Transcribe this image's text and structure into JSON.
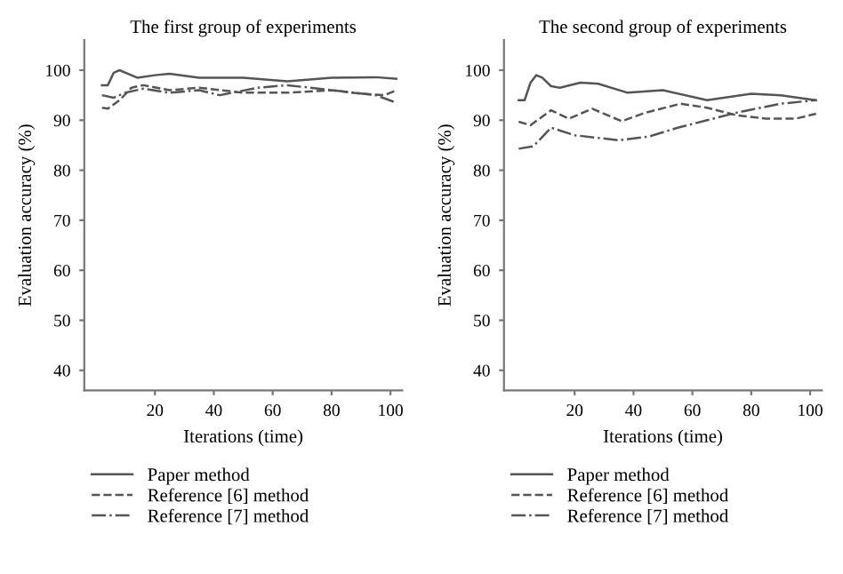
{
  "chart_data": [
    {
      "type": "line",
      "title": "The first group of experiments",
      "xlabel": "Iterations (time)",
      "ylabel": "Evaluation accuracy (%)",
      "xlim": [
        -4,
        104
      ],
      "ylim": [
        36,
        106
      ],
      "xticks": [
        20,
        40,
        60,
        80,
        100
      ],
      "yticks": [
        40,
        50,
        60,
        70,
        80,
        90,
        100
      ],
      "grid": false,
      "legend": "bottom",
      "series": [
        {
          "name": "Paper method",
          "color": "#555555",
          "line_style": "solid",
          "x": [
            2,
            4,
            6,
            8,
            10,
            14,
            20,
            25,
            35,
            50,
            65,
            80,
            95,
            102
          ],
          "values": [
            97,
            97,
            99.5,
            100,
            99.5,
            98.5,
            99,
            99.3,
            98.5,
            98.5,
            97.8,
            98.5,
            98.6,
            98.3
          ]
        },
        {
          "name": "Reference [6] method",
          "color": "#555555",
          "line_style": "dashed",
          "x": [
            2,
            4,
            8,
            12,
            16,
            25,
            35,
            50,
            65,
            80,
            90,
            98,
            102
          ],
          "values": [
            92.5,
            92.3,
            94,
            96.5,
            97,
            96,
            96.5,
            95.5,
            95.5,
            96,
            95.3,
            95,
            96
          ]
        },
        {
          "name": "Reference [7] method",
          "color": "#555555",
          "line_style": "dashdot",
          "x": [
            2,
            6,
            10,
            16,
            25,
            35,
            42,
            55,
            65,
            80,
            95,
            102
          ],
          "values": [
            95,
            94.5,
            95.5,
            96.3,
            95.5,
            96,
            95,
            96.5,
            97,
            96,
            95,
            93.5
          ]
        }
      ]
    },
    {
      "type": "line",
      "title": "The second group of experiments",
      "xlabel": "Iterations (time)",
      "ylabel": "Evaluation accuracy (%)",
      "xlim": [
        -4,
        104
      ],
      "ylim": [
        36,
        106
      ],
      "xticks": [
        20,
        40,
        60,
        80,
        100
      ],
      "yticks": [
        40,
        50,
        60,
        70,
        80,
        90,
        100
      ],
      "grid": false,
      "legend": "bottom",
      "series": [
        {
          "name": "Paper method",
          "color": "#555555",
          "line_style": "solid",
          "x": [
            1,
            3,
            5,
            7,
            9,
            12,
            15,
            22,
            28,
            38,
            50,
            65,
            80,
            90,
            102
          ],
          "values": [
            94,
            94,
            97.5,
            99,
            98.5,
            96.8,
            96.5,
            97.5,
            97.3,
            95.5,
            96,
            94,
            95.3,
            95,
            94
          ]
        },
        {
          "name": "Reference [6] method",
          "color": "#555555",
          "line_style": "dashed",
          "x": [
            1,
            5,
            12,
            18,
            26,
            36,
            44,
            56,
            65,
            75,
            85,
            95,
            102
          ],
          "values": [
            89.7,
            89,
            92,
            90.3,
            92.3,
            89.8,
            91.5,
            93.3,
            92.5,
            91,
            90.3,
            90.3,
            91.3
          ]
        },
        {
          "name": "Reference [7] method",
          "color": "#555555",
          "line_style": "dashdot",
          "x": [
            1,
            6,
            12,
            20,
            35,
            45,
            55,
            65,
            75,
            90,
            102
          ],
          "values": [
            84.3,
            84.8,
            88.5,
            87,
            86,
            86.7,
            88.5,
            90,
            91.5,
            93.3,
            94
          ]
        }
      ]
    }
  ]
}
